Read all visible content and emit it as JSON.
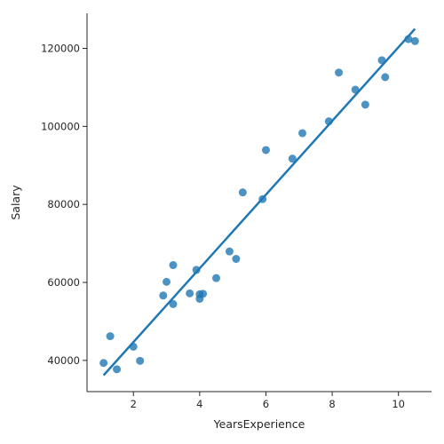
{
  "chart_data": {
    "type": "scatter",
    "xlabel": "YearsExperience",
    "ylabel": "Salary",
    "xlim": [
      0.6,
      11.0
    ],
    "ylim": [
      32000,
      129000
    ],
    "xticks": [
      2,
      4,
      6,
      8,
      10
    ],
    "yticks": [
      40000,
      60000,
      80000,
      100000,
      120000
    ],
    "grid": false,
    "colors": {
      "points": "#1f77b4",
      "line": "#1f77b4",
      "axis": "#262626"
    },
    "points": [
      {
        "x": 1.1,
        "y": 39343
      },
      {
        "x": 1.3,
        "y": 46205
      },
      {
        "x": 1.5,
        "y": 37731
      },
      {
        "x": 2.0,
        "y": 43525
      },
      {
        "x": 2.2,
        "y": 39891
      },
      {
        "x": 2.9,
        "y": 56642
      },
      {
        "x": 3.0,
        "y": 60150
      },
      {
        "x": 3.2,
        "y": 54445
      },
      {
        "x": 3.2,
        "y": 64445
      },
      {
        "x": 3.7,
        "y": 57189
      },
      {
        "x": 3.9,
        "y": 63218
      },
      {
        "x": 4.0,
        "y": 55794
      },
      {
        "x": 4.0,
        "y": 56957
      },
      {
        "x": 4.1,
        "y": 57081
      },
      {
        "x": 4.5,
        "y": 61111
      },
      {
        "x": 4.9,
        "y": 67938
      },
      {
        "x": 5.1,
        "y": 66029
      },
      {
        "x": 5.3,
        "y": 83088
      },
      {
        "x": 5.9,
        "y": 81363
      },
      {
        "x": 6.0,
        "y": 93940
      },
      {
        "x": 6.8,
        "y": 91738
      },
      {
        "x": 7.1,
        "y": 98273
      },
      {
        "x": 7.9,
        "y": 101302
      },
      {
        "x": 8.2,
        "y": 113812
      },
      {
        "x": 8.7,
        "y": 109431
      },
      {
        "x": 9.0,
        "y": 105582
      },
      {
        "x": 9.5,
        "y": 116969
      },
      {
        "x": 9.6,
        "y": 112635
      },
      {
        "x": 10.3,
        "y": 122391
      },
      {
        "x": 10.5,
        "y": 121872
      }
    ],
    "regression": {
      "x": [
        1.1,
        10.5
      ],
      "y": [
        36188,
        125027
      ]
    }
  }
}
